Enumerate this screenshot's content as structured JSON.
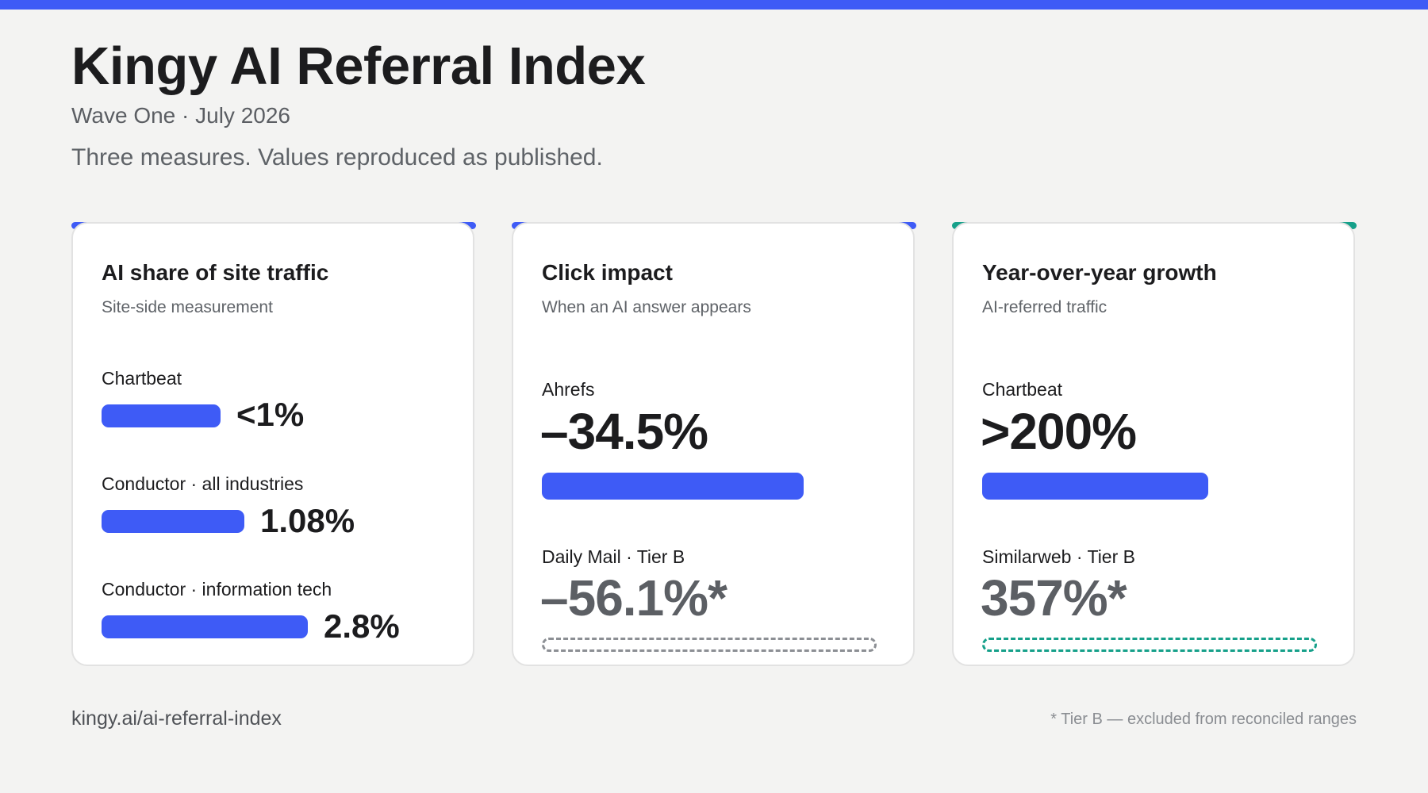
{
  "header": {
    "title": "Kingy AI Referral Index",
    "subtitle": "Wave One · July 2026",
    "description": "Three measures. Values reproduced as published."
  },
  "colors": {
    "accent_blue": "#3e5bf6",
    "accent_teal": "#16a08a",
    "tier_b_gray": "#8c8f94"
  },
  "cards": [
    {
      "title": "AI share of site traffic",
      "subtitle": "Site-side measurement",
      "accent": "#3e5bf6",
      "rows": [
        {
          "label": "Chartbeat",
          "value": "<1%"
        },
        {
          "label": "Conductor · all industries",
          "value": "1.08%"
        },
        {
          "label": "Conductor · information tech",
          "value": "2.8%"
        }
      ]
    },
    {
      "title": "Click impact",
      "subtitle": "When an AI answer appears",
      "accent": "#3e5bf6",
      "primary": {
        "label": "Ahrefs",
        "value": "–34.5%"
      },
      "tier_b": {
        "label": "Daily Mail · Tier B",
        "value": "–56.1%*"
      }
    },
    {
      "title": "Year-over-year growth",
      "subtitle": "AI-referred traffic",
      "accent": "#16a08a",
      "primary": {
        "label": "Chartbeat",
        "value": ">200%"
      },
      "tier_b": {
        "label": "Similarweb · Tier B",
        "value": "357%*"
      }
    }
  ],
  "chart_data": [
    {
      "type": "bar",
      "title": "AI share of site traffic",
      "subtitle": "Site-side measurement",
      "categories": [
        "Chartbeat",
        "Conductor · all industries",
        "Conductor · information tech"
      ],
      "value_labels": [
        "<1%",
        "1.08%",
        "2.8%"
      ]
    },
    {
      "type": "bar",
      "title": "Click impact",
      "subtitle": "When an AI answer appears",
      "categories": [
        "Ahrefs",
        "Daily Mail · Tier B"
      ],
      "values": [
        -34.5,
        -56.1
      ],
      "value_labels": [
        "–34.5%",
        "–56.1%*"
      ]
    },
    {
      "type": "bar",
      "title": "Year-over-year growth",
      "subtitle": "AI-referred traffic",
      "categories": [
        "Chartbeat",
        "Similarweb · Tier B"
      ],
      "values": [
        200,
        357
      ],
      "value_labels": [
        ">200%",
        "357%*"
      ]
    }
  ],
  "footer": {
    "url": "kingy.ai/ai-referral-index",
    "note": "* Tier B — excluded from reconciled ranges"
  }
}
